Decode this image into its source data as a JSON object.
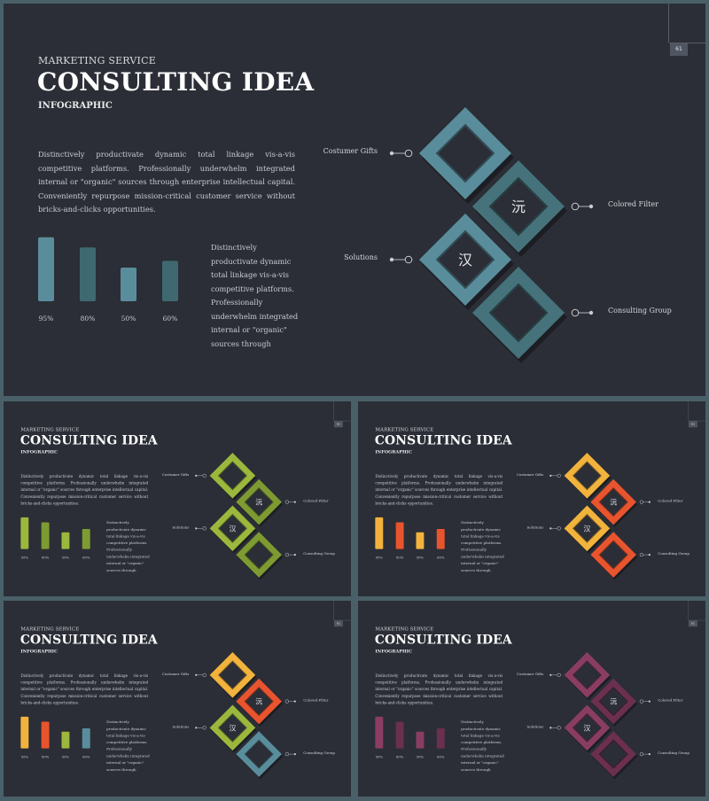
{
  "slide": {
    "eyebrow": "MARKETING SERVICE",
    "title": "CONSULTING IDEA",
    "subtitle": "INFOGRAPHIC",
    "paragraph": "Distinctively productivate dynamic total linkage vis-a-vis competitive platforms. Professionally underwhelm integrated internal or \"organic\" sources through enterprise intellectual capital. Conveniently repurpose mission-critical customer service without bricks-and-clicks opportunities.",
    "side_text": "Distinctively productivate dynamic total linkage vis-a-vis competitive platforms. Professionally underwhelm integrated internal or \"organic\" sources through",
    "page_number": "61",
    "labels": {
      "gifts": "Costumer Gifts",
      "filter": "Colored Filter",
      "solutions": "Solutions",
      "group": "Consulting Group"
    },
    "glyphs": {
      "top": "沅",
      "bottom": "汉"
    }
  },
  "chart_data": {
    "type": "bar",
    "categories": [
      "95%",
      "80%",
      "50%",
      "60%"
    ],
    "values": [
      95,
      80,
      50,
      60
    ],
    "ylim": [
      0,
      100
    ]
  },
  "themes": [
    {
      "name": "teal",
      "bars": [
        "#5a8d9c",
        "#3f6970",
        "#5a8d9c",
        "#3f6970"
      ],
      "diamonds": [
        "#5a8d9c",
        "#46727b",
        "#5a8d9c",
        "#46727b"
      ]
    },
    {
      "name": "green",
      "bars": [
        "#9bb83d",
        "#7e9b32",
        "#9bb83d",
        "#7e9b32"
      ],
      "diamonds": [
        "#9bb83d",
        "#7e9b32",
        "#9bb83d",
        "#7e9b32"
      ]
    },
    {
      "name": "orange",
      "bars": [
        "#f2b33d",
        "#e8542e",
        "#f2b33d",
        "#e8542e"
      ],
      "diamonds": [
        "#f2b33d",
        "#e8542e",
        "#f2b33d",
        "#e8542e"
      ]
    },
    {
      "name": "mixed",
      "bars": [
        "#f2b33d",
        "#e8542e",
        "#9bb83d",
        "#5a8d9c"
      ],
      "diamonds": [
        "#f2b33d",
        "#e8542e",
        "#9bb83d",
        "#5a8d9c"
      ]
    },
    {
      "name": "plum",
      "bars": [
        "#8a3d63",
        "#6b2f4f",
        "#8a3d63",
        "#6b2f4f"
      ],
      "diamonds": [
        "#8a3d63",
        "#6b2f4f",
        "#8a3d63",
        "#6b2f4f"
      ]
    }
  ]
}
